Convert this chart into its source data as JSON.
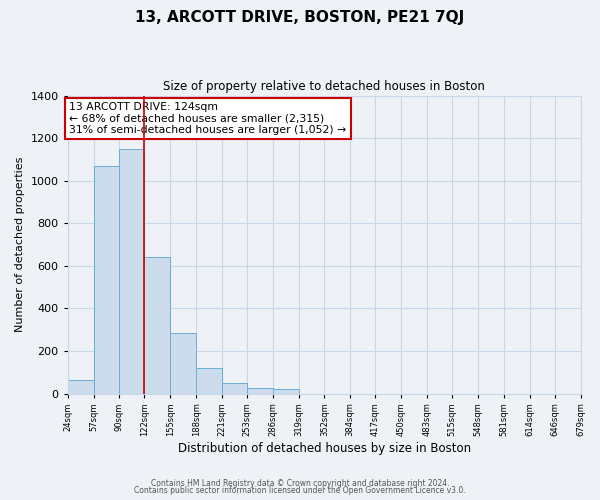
{
  "title": "13, ARCOTT DRIVE, BOSTON, PE21 7QJ",
  "subtitle": "Size of property relative to detached houses in Boston",
  "xlabel": "Distribution of detached houses by size in Boston",
  "ylabel": "Number of detached properties",
  "footer_line1": "Contains HM Land Registry data © Crown copyright and database right 2024.",
  "footer_line2": "Contains public sector information licensed under the Open Government Licence v3.0.",
  "annotation_line1": "13 ARCOTT DRIVE: 124sqm",
  "annotation_line2": "← 68% of detached houses are smaller (2,315)",
  "annotation_line3": "31% of semi-detached houses are larger (1,052) →",
  "bar_edges": [
    24,
    57,
    90,
    122,
    155,
    188,
    221,
    253,
    286,
    319,
    352,
    384,
    417,
    450,
    483,
    515,
    548,
    581,
    614,
    646,
    679
  ],
  "bar_heights": [
    65,
    1070,
    1150,
    640,
    285,
    120,
    50,
    25,
    20,
    0,
    0,
    0,
    0,
    0,
    0,
    0,
    0,
    0,
    0,
    0
  ],
  "bar_color": "#ccdced",
  "bar_edge_color": "#6aaed6",
  "marker_x": 122,
  "marker_color": "#cc0000",
  "ylim": [
    0,
    1400
  ],
  "xlim": [
    24,
    679
  ],
  "tick_labels": [
    "24sqm",
    "57sqm",
    "90sqm",
    "122sqm",
    "155sqm",
    "188sqm",
    "221sqm",
    "253sqm",
    "286sqm",
    "319sqm",
    "352sqm",
    "384sqm",
    "417sqm",
    "450sqm",
    "483sqm",
    "515sqm",
    "548sqm",
    "581sqm",
    "614sqm",
    "646sqm",
    "679sqm"
  ],
  "bg_color": "#eef2f7",
  "plot_bg_color": "#eef2f7",
  "grid_color": "#c8d8e8",
  "yticks": [
    0,
    200,
    400,
    600,
    800,
    1000,
    1200,
    1400
  ]
}
